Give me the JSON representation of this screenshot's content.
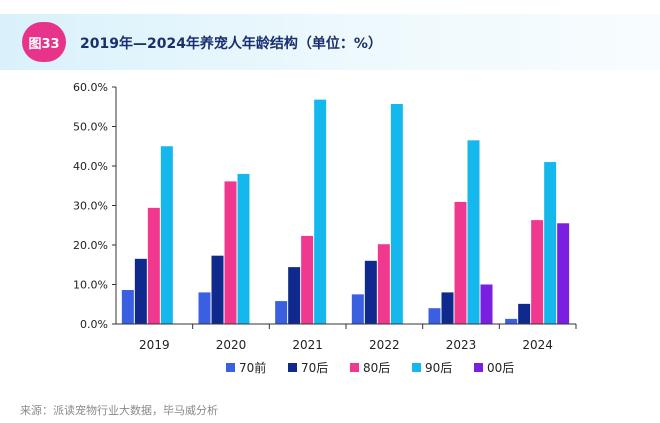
{
  "header": {
    "badge": "图33",
    "title": "2019年—2024年养宠人年龄结构（单位：%）"
  },
  "source": "来源：派读宠物行业大数据，毕马威分析",
  "chart_data": {
    "type": "bar",
    "title": "2019年—2024年养宠人年龄结构（单位：%）",
    "xlabel": "",
    "ylabel": "",
    "ylim": [
      0,
      60
    ],
    "yticks": [
      0,
      10,
      20,
      30,
      40,
      50,
      60
    ],
    "ytick_labels": [
      "0.0%",
      "10.0%",
      "20.0%",
      "30.0%",
      "40.0%",
      "50.0%",
      "60.0%"
    ],
    "grid": false,
    "legend_position": "bottom",
    "categories": [
      "2019",
      "2020",
      "2021",
      "2022",
      "2023",
      "2024"
    ],
    "series": [
      {
        "name": "70前",
        "color": "#3a5fe0",
        "values": [
          8.6,
          8.0,
          5.8,
          7.5,
          4.0,
          1.3
        ]
      },
      {
        "name": "70后",
        "color": "#0f2a8c",
        "values": [
          16.5,
          17.3,
          14.4,
          16.0,
          8.0,
          5.1
        ]
      },
      {
        "name": "80后",
        "color": "#f0388f",
        "values": [
          29.4,
          36.1,
          22.3,
          20.2,
          30.9,
          26.3
        ]
      },
      {
        "name": "90后",
        "color": "#14b8ec",
        "values": [
          45.0,
          38.0,
          56.8,
          55.7,
          46.5,
          41.0
        ]
      },
      {
        "name": "00后",
        "color": "#7a1fe0",
        "values": [
          0,
          0,
          0,
          0,
          10.0,
          25.5
        ]
      }
    ]
  }
}
